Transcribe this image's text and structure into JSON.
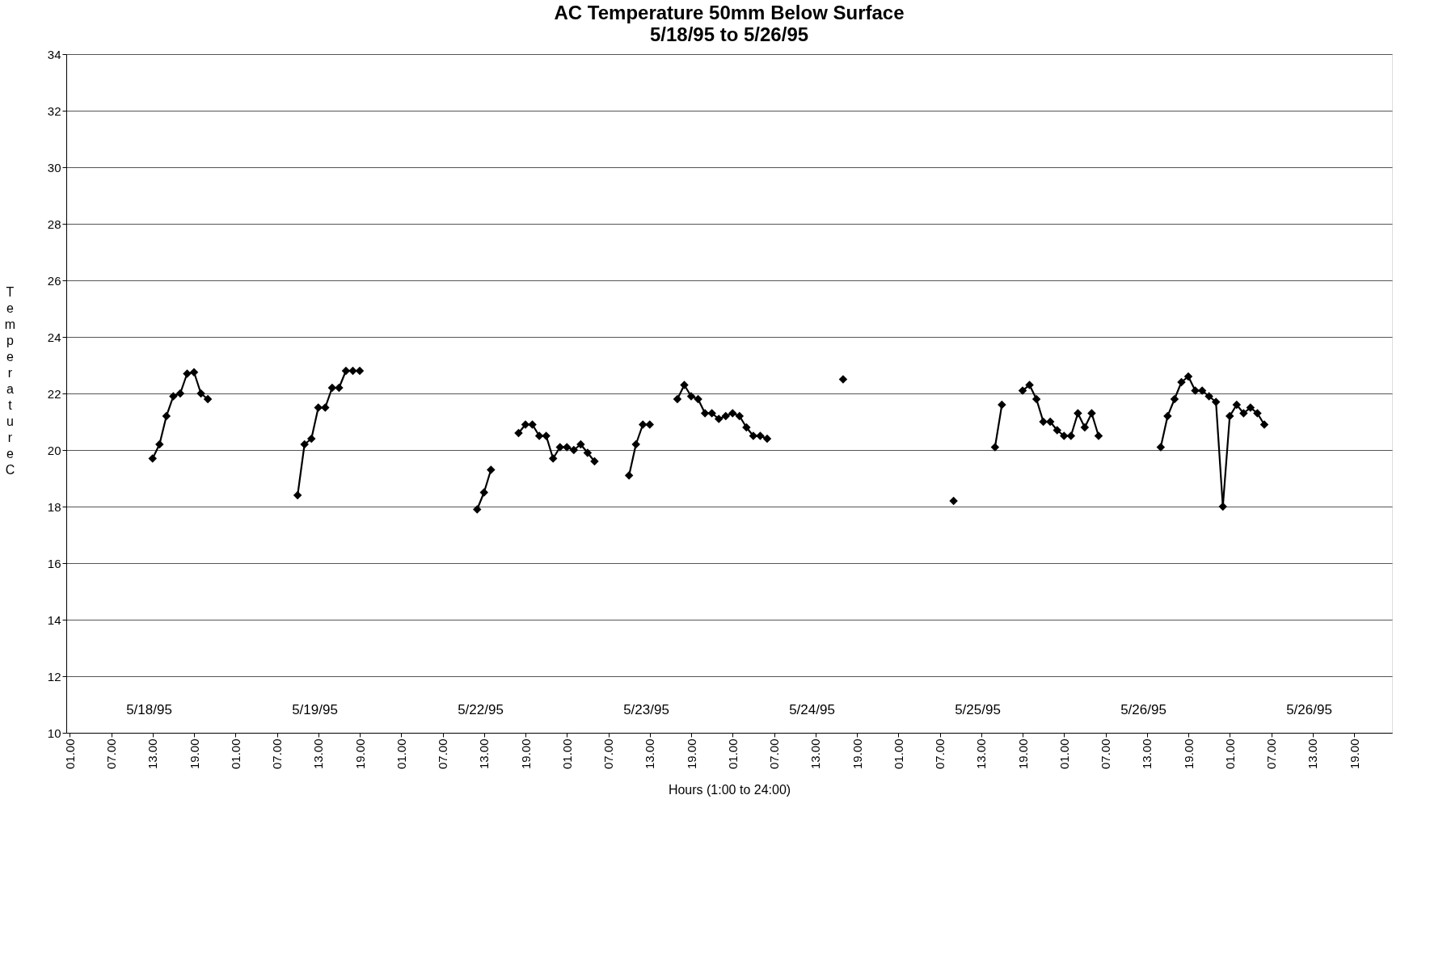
{
  "chart_data": {
    "type": "line",
    "title": "AC Temperature 50mm Below Surface",
    "subtitle": "5/18/95 to 5/26/95",
    "xlabel": "Hours (1:00 to 24:00)",
    "ylabel": "Temperature C",
    "marker": "diamond",
    "line_style": "solid",
    "grid": "y",
    "ylim": [
      10,
      34
    ],
    "yticks": [
      10,
      12,
      14,
      16,
      18,
      20,
      22,
      24,
      26,
      28,
      30,
      32,
      34
    ],
    "categories": [
      "01.00",
      null,
      null,
      null,
      null,
      null,
      "07.00",
      null,
      null,
      null,
      null,
      null,
      "13.00",
      null,
      null,
      null,
      null,
      null,
      "19.00",
      null,
      null,
      null,
      null,
      null,
      "01.00",
      null,
      null,
      null,
      null,
      null,
      "07.00",
      null,
      null,
      null,
      null,
      null,
      "13.00",
      null,
      null,
      null,
      null,
      null,
      "19.00",
      null,
      null,
      null,
      null,
      null,
      "01.00",
      null,
      null,
      null,
      null,
      null,
      "07.00",
      null,
      null,
      null,
      null,
      null,
      "13.00",
      null,
      null,
      null,
      null,
      null,
      "19.00",
      null,
      null,
      null,
      null,
      null,
      "01.00",
      null,
      null,
      null,
      null,
      null,
      "07.00",
      null,
      null,
      null,
      null,
      null,
      "13.00",
      null,
      null,
      null,
      null,
      null,
      "19.00",
      null,
      null,
      null,
      null,
      null,
      "01.00",
      null,
      null,
      null,
      null,
      null,
      "07.00",
      null,
      null,
      null,
      null,
      null,
      "13.00",
      null,
      null,
      null,
      null,
      null,
      "19.00",
      null,
      null,
      null,
      null,
      null,
      "01.00",
      null,
      null,
      null,
      null,
      null,
      "07.00",
      null,
      null,
      null,
      null,
      null,
      "13.00",
      null,
      null,
      null,
      null,
      null,
      "19.00",
      null,
      null,
      null,
      null,
      null,
      "01.00",
      null,
      null,
      null,
      null,
      null,
      "07.00",
      null,
      null,
      null,
      null,
      null,
      "13.00",
      null,
      null,
      null,
      null,
      null,
      "19.00",
      null,
      null,
      null,
      null,
      null,
      "01.00",
      null,
      null,
      null,
      null,
      null,
      "07.00",
      null,
      null,
      null,
      null,
      null,
      "13.00",
      null,
      null,
      null,
      null,
      null,
      "19.00",
      null,
      null,
      null,
      null,
      null
    ],
    "annotations": [
      "5/18/95",
      "5/19/95",
      "5/22/95",
      "5/23/95",
      "5/24/95",
      "5/25/95",
      "5/26/95",
      "5/26/95"
    ],
    "series": [
      {
        "color": "#000000",
        "values": [
          null,
          null,
          null,
          null,
          null,
          null,
          null,
          null,
          null,
          null,
          null,
          null,
          19.7,
          20.2,
          21.2,
          21.9,
          22.0,
          22.7,
          22.75,
          22.0,
          21.8,
          null,
          null,
          null,
          null,
          null,
          null,
          null,
          null,
          null,
          null,
          null,
          null,
          18.4,
          20.2,
          20.4,
          21.5,
          21.5,
          22.2,
          22.2,
          22.8,
          22.8,
          22.8,
          null,
          null,
          null,
          null,
          null,
          null,
          null,
          null,
          null,
          null,
          null,
          null,
          null,
          null,
          null,
          null,
          17.9,
          18.5,
          19.3,
          null,
          null,
          null,
          20.6,
          20.9,
          20.9,
          20.5,
          20.5,
          19.7,
          20.1,
          20.1,
          20.0,
          20.2,
          19.9,
          19.6,
          null,
          null,
          null,
          null,
          19.1,
          20.2,
          20.9,
          20.9,
          null,
          null,
          null,
          21.8,
          22.3,
          21.9,
          21.8,
          21.3,
          21.3,
          21.1,
          21.2,
          21.3,
          21.2,
          20.8,
          20.5,
          20.5,
          20.4,
          null,
          null,
          null,
          null,
          null,
          null,
          null,
          null,
          null,
          null,
          22.5,
          null,
          null,
          null,
          null,
          null,
          null,
          null,
          null,
          null,
          null,
          null,
          null,
          null,
          null,
          null,
          18.2,
          null,
          null,
          null,
          null,
          null,
          20.1,
          21.6,
          null,
          null,
          22.1,
          22.3,
          21.8,
          21.0,
          21.0,
          20.7,
          20.5,
          20.5,
          21.3,
          20.8,
          21.3,
          20.5,
          null,
          null,
          null,
          null,
          null,
          null,
          null,
          null,
          20.1,
          21.2,
          21.8,
          22.4,
          22.6,
          22.1,
          22.1,
          21.9,
          21.7,
          18.0,
          21.2,
          21.6,
          21.3,
          21.5,
          21.3,
          20.9,
          null,
          null,
          null,
          null,
          null,
          null,
          null,
          null,
          null,
          null,
          null,
          null,
          null,
          null,
          null,
          null,
          null,
          null
        ]
      }
    ]
  }
}
